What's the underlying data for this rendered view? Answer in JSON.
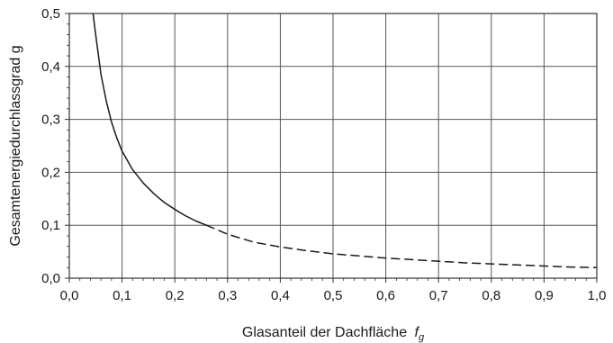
{
  "chart_data": {
    "type": "line",
    "xlabel": "Glasanteil der Dachfläche",
    "xlabel_symbol": "f",
    "xlabel_subscript": "g",
    "ylabel": "Gesamtenergiedurchlassgrad g",
    "xlim": [
      0.0,
      1.0
    ],
    "ylim": [
      0.0,
      0.5
    ],
    "x_ticks": [
      "0,0",
      "0,1",
      "0,2",
      "0,3",
      "0,4",
      "0,5",
      "0,6",
      "0,7",
      "0,8",
      "0,9",
      "1,0"
    ],
    "y_ticks": [
      "0,0",
      "0,1",
      "0,2",
      "0,3",
      "0,4",
      "0,5"
    ],
    "grid": true,
    "colors": {
      "grid": "#555555",
      "line": "#1a1a1a"
    },
    "series": [
      {
        "style": "solid",
        "x": [
          0.045,
          0.05,
          0.06,
          0.07,
          0.08,
          0.09,
          0.1,
          0.12,
          0.14,
          0.16,
          0.18,
          0.2,
          0.22,
          0.24,
          0.26
        ],
        "y": [
          0.5,
          0.46,
          0.385,
          0.335,
          0.295,
          0.265,
          0.24,
          0.205,
          0.18,
          0.16,
          0.143,
          0.13,
          0.118,
          0.108,
          0.1
        ]
      },
      {
        "style": "dashed",
        "x": [
          0.26,
          0.3,
          0.35,
          0.4,
          0.45,
          0.5,
          0.55,
          0.6,
          0.65,
          0.7,
          0.75,
          0.8,
          0.85,
          0.9,
          0.95,
          1.0
        ],
        "y": [
          0.1,
          0.083,
          0.068,
          0.059,
          0.052,
          0.046,
          0.042,
          0.038,
          0.035,
          0.032,
          0.029,
          0.027,
          0.025,
          0.023,
          0.021,
          0.02
        ]
      }
    ]
  }
}
